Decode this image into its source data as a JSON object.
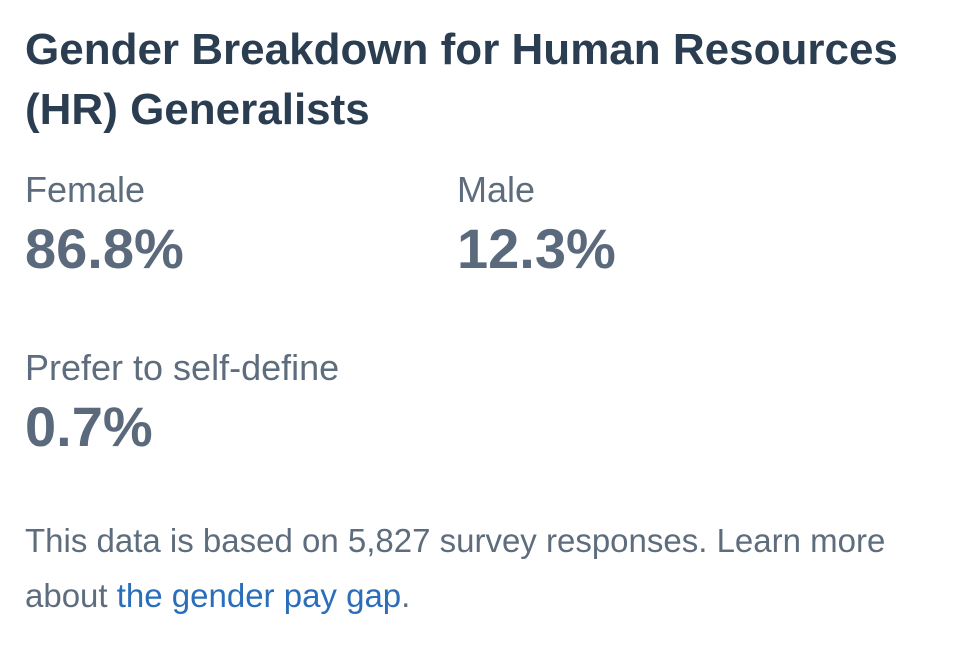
{
  "header": {
    "title": "Gender Breakdown for Human Resources (HR) Generalists"
  },
  "stats": [
    {
      "label": "Female",
      "value": "86.8%"
    },
    {
      "label": "Male",
      "value": "12.3%"
    },
    {
      "label": "Prefer to self-define",
      "value": "0.7%"
    }
  ],
  "footnote": {
    "text": "This data is based on 5,827 survey responses. Learn more about ",
    "link": "the gender pay gap",
    "end": "."
  }
}
